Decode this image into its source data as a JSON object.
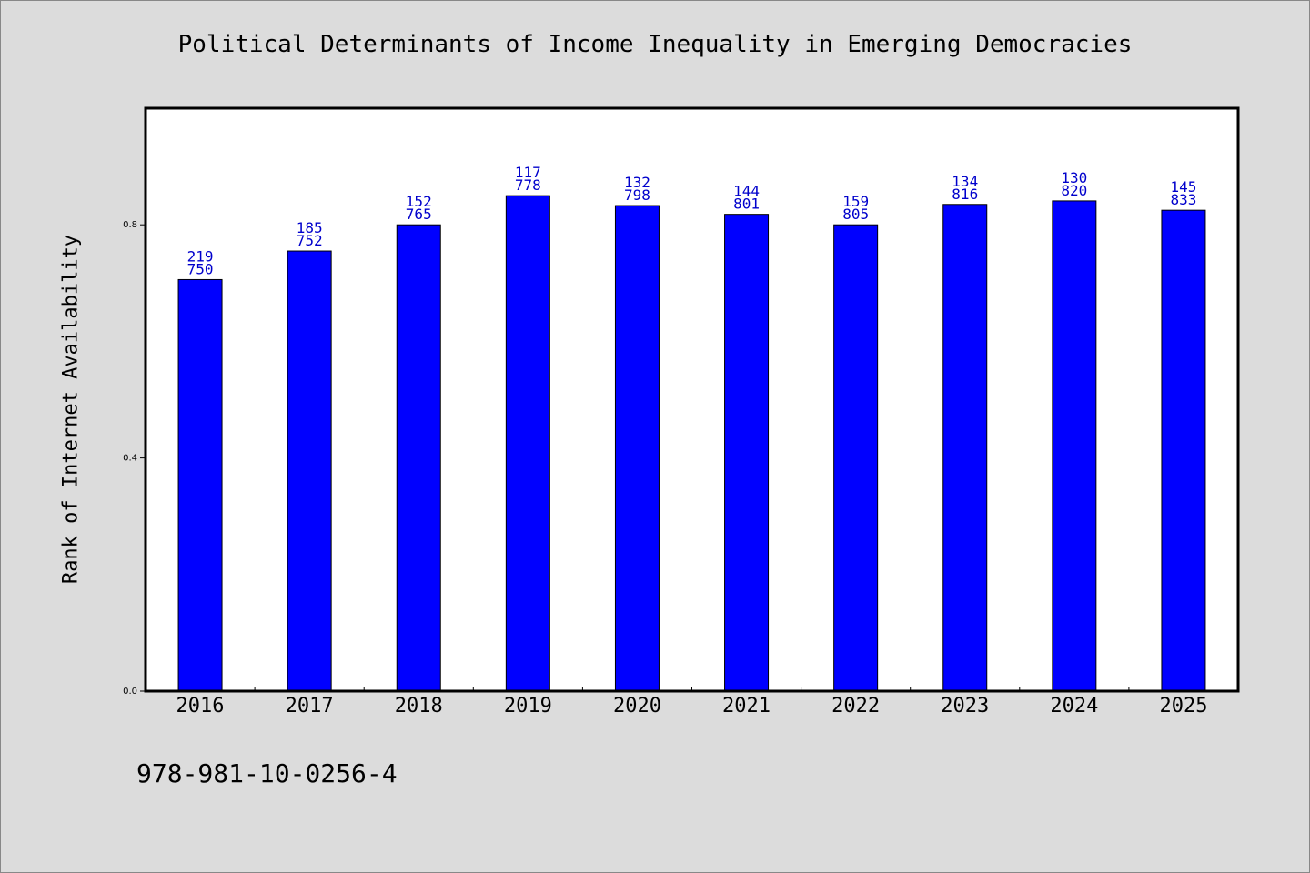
{
  "chart_data": {
    "type": "bar",
    "title": "Political Determinants of Income Inequality in Emerging Democracies",
    "ylabel": "Rank of Internet Availability",
    "xlabel": "",
    "ylim": [
      0,
      1.0
    ],
    "yticks": [
      "0.0",
      "0.4",
      "0.8"
    ],
    "categories": [
      "2016",
      "2017",
      "2018",
      "2019",
      "2020",
      "2021",
      "2022",
      "2023",
      "2024",
      "2025"
    ],
    "values": [
      0.706,
      0.755,
      0.8,
      0.85,
      0.833,
      0.818,
      0.8,
      0.835,
      0.841,
      0.825
    ],
    "labels_top": [
      "219",
      "185",
      "152",
      "117",
      "132",
      "144",
      "159",
      "134",
      "130",
      "145"
    ],
    "labels_bottom": [
      "750",
      "752",
      "765",
      "778",
      "798",
      "801",
      "805",
      "816",
      "820",
      "833"
    ],
    "bar_color": "#0000ff",
    "label_color": "#0000cc",
    "grid": false
  },
  "footer": {
    "code": "978-981-10-0256-4"
  }
}
